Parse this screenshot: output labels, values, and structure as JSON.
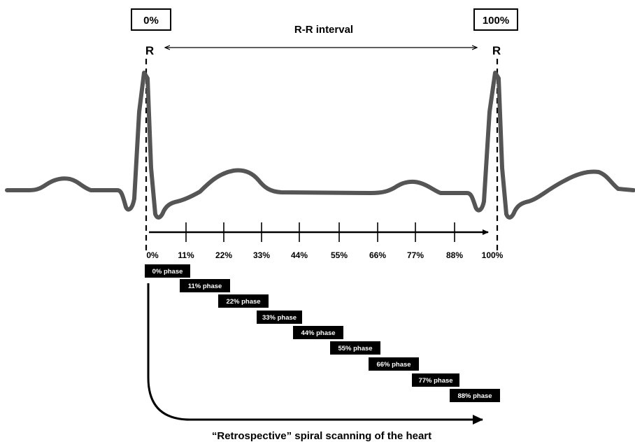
{
  "markers": {
    "start_box": "0%",
    "end_box": "100%",
    "r_start": "R",
    "r_end": "R",
    "interval_label": "R-R interval"
  },
  "axis_ticks": [
    "0%",
    "11%",
    "22%",
    "33%",
    "44%",
    "55%",
    "66%",
    "77%",
    "88%",
    "100%"
  ],
  "phases": [
    "0% phase",
    "11% phase",
    "22% phase",
    "33% phase",
    "44% phase",
    "55% phase",
    "66% phase",
    "77% phase",
    "88% phase"
  ],
  "caption": "“Retrospective” spiral scanning of the heart",
  "colors": {
    "ecg_trace": "#555555",
    "ink": "#000000",
    "phase_box": "#000000",
    "phase_text": "#ffffff"
  }
}
